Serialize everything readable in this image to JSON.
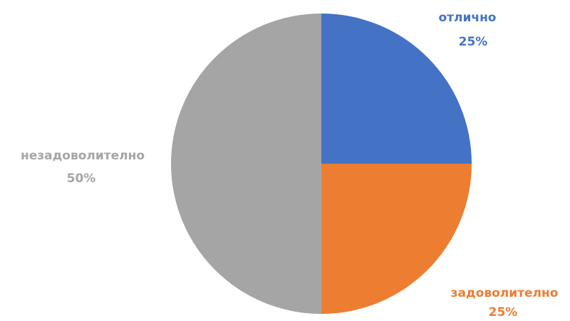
{
  "chart_data": {
    "type": "pie",
    "categories": [
      "отлично",
      "задоволително",
      "незадоволително"
    ],
    "values": [
      25,
      25,
      50
    ],
    "percent_labels": [
      "25%",
      "25%",
      "50%"
    ],
    "colors": [
      "#4472C4",
      "#ED7D31",
      "#A5A5A5"
    ],
    "start_angle_deg": 0,
    "direction": "clockwise",
    "legend": "none"
  }
}
